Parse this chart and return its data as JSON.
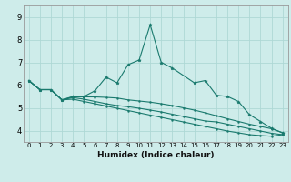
{
  "title": "",
  "xlabel": "Humidex (Indice chaleur)",
  "bg_color": "#ceecea",
  "grid_color": "#aed8d5",
  "line_color": "#1a7a6e",
  "x_ticks": [
    0,
    1,
    2,
    3,
    4,
    5,
    6,
    7,
    8,
    9,
    10,
    11,
    12,
    13,
    14,
    15,
    16,
    17,
    18,
    19,
    20,
    21,
    22,
    23
  ],
  "ylim": [
    3.5,
    9.5
  ],
  "xlim": [
    -0.5,
    23.5
  ],
  "yticks": [
    4,
    5,
    6,
    7,
    8,
    9
  ],
  "series1_x": [
    0,
    1,
    2,
    3,
    4,
    5,
    6,
    7,
    8,
    9,
    10,
    11,
    12,
    13,
    15,
    16,
    17,
    18,
    19,
    20,
    21,
    22,
    23
  ],
  "series1_y": [
    6.2,
    5.8,
    5.8,
    5.35,
    5.5,
    5.5,
    5.75,
    6.35,
    6.1,
    6.9,
    7.1,
    8.65,
    7.0,
    6.75,
    6.1,
    6.2,
    5.55,
    5.5,
    5.28,
    4.7,
    4.4,
    4.1,
    3.9
  ],
  "series2": [
    6.2,
    5.8,
    5.8,
    5.35,
    5.48,
    5.48,
    5.48,
    5.46,
    5.43,
    5.35,
    5.3,
    5.25,
    5.18,
    5.1,
    5.0,
    4.9,
    4.78,
    4.65,
    4.52,
    4.4,
    4.28,
    4.18,
    4.08,
    3.9
  ],
  "series3": [
    6.2,
    5.8,
    5.8,
    5.35,
    5.45,
    5.38,
    5.28,
    5.18,
    5.1,
    5.05,
    4.98,
    4.9,
    4.82,
    4.72,
    4.62,
    4.52,
    4.42,
    4.38,
    4.28,
    4.18,
    4.08,
    3.98,
    3.88,
    3.82
  ],
  "series4": [
    6.2,
    5.8,
    5.8,
    5.35,
    5.38,
    5.28,
    5.18,
    5.08,
    4.98,
    4.88,
    4.78,
    4.68,
    4.58,
    4.48,
    4.38,
    4.28,
    4.18,
    4.08,
    3.98,
    3.9,
    3.82,
    3.78,
    3.75,
    3.82
  ]
}
